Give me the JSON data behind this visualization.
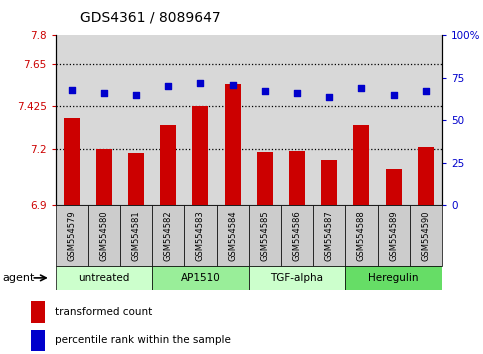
{
  "title": "GDS4361 / 8089647",
  "samples": [
    "GSM554579",
    "GSM554580",
    "GSM554581",
    "GSM554582",
    "GSM554583",
    "GSM554584",
    "GSM554585",
    "GSM554586",
    "GSM554587",
    "GSM554588",
    "GSM554589",
    "GSM554590"
  ],
  "bar_values": [
    7.36,
    7.2,
    7.175,
    7.325,
    7.425,
    7.54,
    7.18,
    7.19,
    7.14,
    7.325,
    7.09,
    7.21
  ],
  "percentile_values": [
    68,
    66,
    65,
    70,
    72,
    71,
    67,
    66,
    64,
    69,
    65,
    67
  ],
  "bar_color": "#cc0000",
  "dot_color": "#0000cc",
  "ylim_left": [
    6.9,
    7.8
  ],
  "ylim_right": [
    0,
    100
  ],
  "yticks_left": [
    6.9,
    7.2,
    7.425,
    7.65,
    7.8
  ],
  "ytick_labels_left": [
    "6.9",
    "7.2",
    "7.425",
    "7.65",
    "7.8"
  ],
  "yticks_right": [
    0,
    25,
    50,
    75,
    100
  ],
  "ytick_labels_right": [
    "0",
    "25",
    "50",
    "75",
    "100%"
  ],
  "hlines": [
    7.2,
    7.425,
    7.65
  ],
  "groups": [
    {
      "label": "untreated",
      "start": 0,
      "end": 3,
      "color": "#ccffcc"
    },
    {
      "label": "AP1510",
      "start": 3,
      "end": 6,
      "color": "#99ee99"
    },
    {
      "label": "TGF-alpha",
      "start": 6,
      "end": 9,
      "color": "#ccffcc"
    },
    {
      "label": "Heregulin",
      "start": 9,
      "end": 12,
      "color": "#66dd66"
    }
  ],
  "legend_bar_label": "transformed count",
  "legend_dot_label": "percentile rank within the sample",
  "agent_label": "agent",
  "bg_color": "#ffffff",
  "plot_bg_color": "#d8d8d8",
  "sample_bg_color": "#cccccc",
  "bar_width": 0.5
}
